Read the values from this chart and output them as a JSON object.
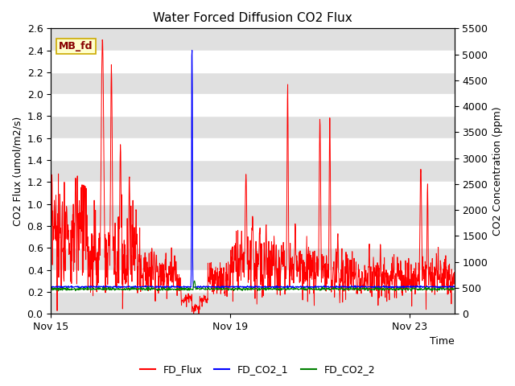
{
  "title": "Water Forced Diffusion CO2 Flux",
  "xlabel": "Time",
  "ylabel_left": "CO2 Flux (umol/m2/s)",
  "ylabel_right": "CO2 Concentration (ppm)",
  "ylim_left": [
    0.0,
    2.6
  ],
  "ylim_right": [
    0,
    5500
  ],
  "yticks_left": [
    0.0,
    0.2,
    0.4,
    0.6,
    0.8,
    1.0,
    1.2,
    1.4,
    1.6,
    1.8,
    2.0,
    2.2,
    2.4,
    2.6
  ],
  "yticks_right": [
    0,
    500,
    1000,
    1500,
    2000,
    2500,
    3000,
    3500,
    4000,
    4500,
    5000,
    5500
  ],
  "xtick_labels": [
    "Nov 15",
    "Nov 19",
    "Nov 23"
  ],
  "xtick_positions": [
    0,
    4,
    8
  ],
  "legend_labels": [
    "FD_Flux",
    "FD_CO2_1",
    "FD_CO2_2"
  ],
  "legend_colors": [
    "red",
    "blue",
    "green"
  ],
  "line_colors": [
    "red",
    "blue",
    "green"
  ],
  "box_label": "MB_fd",
  "box_facecolor": "#ffffcc",
  "box_edgecolor": "#ccaa00",
  "box_textcolor": "#880000",
  "background_color": "#ffffff",
  "band_color": "#e0e0e0",
  "title_fontsize": 11,
  "axis_label_fontsize": 9,
  "tick_label_fontsize": 9
}
